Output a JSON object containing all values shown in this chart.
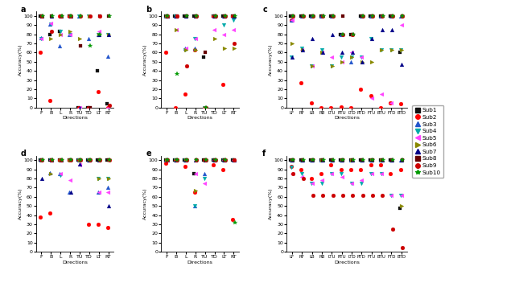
{
  "subjects": [
    "Sub1",
    "Sub2",
    "Sub3",
    "Sub4",
    "Sub5",
    "Sub6",
    "Sub7",
    "Sub8",
    "Sub9",
    "Sub10"
  ],
  "colors": [
    "#000000",
    "#ff0000",
    "#0000ff",
    "#00cccc",
    "#ff00ff",
    "#808000",
    "#000099",
    "#8b0000",
    "#ff0000",
    "#00aa00"
  ],
  "markers": [
    "s",
    "o",
    "^",
    "v",
    "<",
    ">",
    "^",
    "s",
    "o",
    "*"
  ],
  "marker_colors": [
    "#222222",
    "#ff2222",
    "#3333ff",
    "#00bbbb",
    "#ff44ff",
    "#999900",
    "#0000cc",
    "#8b0000",
    "#cc0000",
    "#00aa00"
  ],
  "dirs_short": [
    "F",
    "B",
    "L",
    "R",
    "TU",
    "TD",
    "LT",
    "RT"
  ],
  "dirs_long": [
    "LF",
    "RF",
    "LB",
    "RB",
    "LTU",
    "RTU",
    "LTD",
    "RTD",
    "FTU",
    "BTU",
    "FTD",
    "BTD"
  ],
  "subplot_a": {
    "F": [
      100,
      60,
      76,
      75,
      75,
      100,
      100,
      100,
      100,
      100
    ],
    "B": [
      80,
      8,
      91,
      91,
      92,
      75,
      100,
      100,
      83,
      100
    ],
    "L": [
      83,
      100,
      67,
      83,
      80,
      80,
      100,
      100,
      100,
      100
    ],
    "R": [
      100,
      100,
      80,
      80,
      80,
      83,
      100,
      100,
      100,
      100
    ],
    "TU": [
      0,
      0,
      100,
      100,
      0,
      75,
      0,
      67,
      100,
      100
    ],
    "TD": [
      0,
      0,
      75,
      100,
      0,
      100,
      0,
      0,
      100,
      67
    ],
    "LT": [
      40,
      17,
      80,
      80,
      83,
      80,
      80,
      100,
      100,
      80
    ],
    "RT": [
      4,
      0,
      56,
      80,
      0,
      80,
      80,
      100,
      2,
      100
    ]
  },
  "subplot_b": {
    "F": [
      100,
      60,
      100,
      100,
      100,
      100,
      100,
      100,
      100,
      100
    ],
    "B": [
      100,
      0,
      100,
      100,
      85,
      85,
      100,
      100,
      100,
      37
    ],
    "L": [
      100,
      15,
      65,
      63,
      65,
      63,
      100,
      100,
      45,
      100
    ],
    "R": [
      100,
      63,
      65,
      75,
      75,
      63,
      100,
      100,
      100,
      100
    ],
    "TU": [
      55,
      0,
      0,
      0,
      0,
      0,
      0,
      60,
      0,
      0
    ],
    "TD": [
      100,
      100,
      100,
      100,
      85,
      75,
      100,
      100,
      100,
      100
    ],
    "LT": [
      100,
      25,
      100,
      90,
      80,
      65,
      100,
      100,
      100,
      100
    ],
    "RT": [
      100,
      100,
      100,
      95,
      85,
      65,
      100,
      100,
      70,
      100
    ]
  },
  "subplot_c": {
    "LF": [
      100,
      95,
      95,
      55,
      95,
      70,
      55,
      100,
      100,
      100
    ],
    "RF": [
      100,
      27,
      100,
      65,
      63,
      63,
      63,
      100,
      100,
      100
    ],
    "LB": [
      100,
      5,
      100,
      45,
      45,
      45,
      75,
      100,
      100,
      100
    ],
    "RB": [
      100,
      0,
      100,
      63,
      60,
      60,
      60,
      100,
      100,
      100
    ],
    "LTU": [
      100,
      0,
      100,
      45,
      55,
      45,
      80,
      100,
      100,
      100
    ],
    "RTU": [
      80,
      1,
      80,
      55,
      50,
      50,
      60,
      100,
      80,
      80
    ],
    "LTD": [
      80,
      0,
      50,
      55,
      60,
      55,
      60,
      80,
      80,
      80
    ],
    "RTD": [
      100,
      20,
      100,
      55,
      55,
      50,
      50,
      100,
      100,
      100
    ],
    "FTU": [
      100,
      13,
      100,
      75,
      10,
      50,
      75,
      100,
      100,
      100
    ],
    "BTU": [
      100,
      0,
      100,
      63,
      15,
      63,
      85,
      100,
      100,
      100
    ],
    "FTD": [
      100,
      5,
      100,
      63,
      5,
      63,
      85,
      100,
      100,
      100
    ],
    "BTD": [
      60,
      4,
      100,
      63,
      90,
      63,
      47,
      100,
      100,
      100
    ]
  },
  "subplot_d": {
    "F": [
      100,
      38,
      100,
      100,
      100,
      100,
      80,
      100,
      100,
      100
    ],
    "B": [
      100,
      42,
      86,
      100,
      100,
      85,
      100,
      100,
      100,
      100
    ],
    "L": [
      100,
      100,
      85,
      84,
      85,
      100,
      100,
      100,
      100,
      100
    ],
    "R": [
      100,
      100,
      65,
      100,
      78,
      100,
      65,
      100,
      100,
      100
    ],
    "TU": [
      100,
      100,
      100,
      100,
      95,
      100,
      96,
      100,
      100,
      100
    ],
    "TD": [
      100,
      30,
      100,
      100,
      100,
      100,
      100,
      100,
      100,
      100
    ],
    "LT": [
      100,
      30,
      65,
      80,
      65,
      80,
      100,
      100,
      100,
      100
    ],
    "RT": [
      100,
      27,
      70,
      80,
      65,
      80,
      50,
      100,
      100,
      100
    ]
  },
  "subplot_e": {
    "F": [
      100,
      97,
      100,
      100,
      100,
      100,
      100,
      100,
      100,
      100
    ],
    "B": [
      100,
      100,
      100,
      100,
      100,
      100,
      100,
      100,
      100,
      100
    ],
    "L": [
      100,
      93,
      100,
      100,
      100,
      100,
      100,
      100,
      100,
      100
    ],
    "R": [
      85,
      65,
      50,
      50,
      85,
      67,
      100,
      100,
      100,
      100
    ],
    "TU": [
      100,
      100,
      85,
      80,
      75,
      100,
      100,
      100,
      100,
      100
    ],
    "TD": [
      100,
      95,
      100,
      100,
      100,
      100,
      100,
      100,
      100,
      100
    ],
    "LT": [
      100,
      90,
      100,
      100,
      100,
      100,
      100,
      100,
      100,
      100
    ],
    "RT": [
      100,
      35,
      100,
      100,
      100,
      100,
      100,
      100,
      100,
      32
    ]
  },
  "subplot_f": {
    "LF": [
      100,
      93,
      100,
      92,
      85,
      100,
      100,
      100,
      85,
      100
    ],
    "RF": [
      100,
      90,
      100,
      85,
      82,
      100,
      100,
      100,
      80,
      100
    ],
    "LB": [
      100,
      80,
      100,
      75,
      75,
      100,
      100,
      100,
      62,
      100
    ],
    "RB": [
      100,
      85,
      100,
      75,
      78,
      100,
      100,
      100,
      62,
      100
    ],
    "LTU": [
      100,
      95,
      100,
      85,
      85,
      100,
      100,
      100,
      62,
      100
    ],
    "RTU": [
      100,
      90,
      100,
      85,
      82,
      100,
      100,
      100,
      62,
      100
    ],
    "LTD": [
      100,
      90,
      100,
      75,
      75,
      100,
      100,
      100,
      62,
      100
    ],
    "RTD": [
      100,
      90,
      100,
      75,
      78,
      100,
      100,
      100,
      62,
      100
    ],
    "FTU": [
      100,
      95,
      100,
      85,
      85,
      100,
      100,
      100,
      62,
      100
    ],
    "BTU": [
      100,
      95,
      100,
      85,
      85,
      100,
      100,
      100,
      62,
      100
    ],
    "FTD": [
      100,
      85,
      100,
      62,
      62,
      100,
      100,
      100,
      25,
      100
    ],
    "BTD": [
      48,
      90,
      100,
      62,
      62,
      50,
      100,
      100,
      5,
      100
    ]
  },
  "ylim": [
    0,
    105
  ],
  "yticks": [
    0,
    10,
    20,
    30,
    40,
    50,
    60,
    70,
    80,
    90,
    100
  ],
  "ylabel": "Accuracy(%)",
  "xlabel": "Directions"
}
